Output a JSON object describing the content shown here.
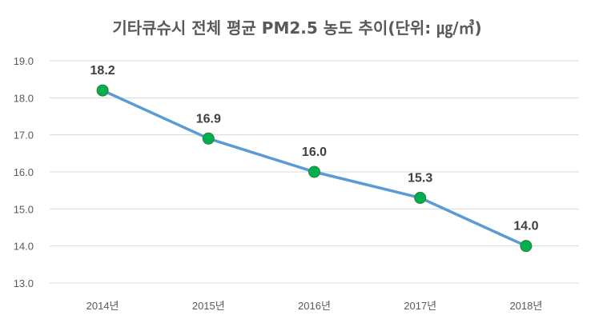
{
  "chart_data": {
    "type": "line",
    "title": "기타큐슈시 전체 평균 PM2.5 농도 추이(단위: ㎍/㎥)",
    "categories": [
      "2014년",
      "2015년",
      "2016년",
      "2017년",
      "2018년"
    ],
    "series": [
      {
        "values": [
          18.2,
          16.9,
          16.0,
          15.3,
          14.0
        ]
      }
    ],
    "data_labels": [
      "18.2",
      "16.9",
      "16.0",
      "15.3",
      "14.0"
    ],
    "ylim": [
      13.0,
      19.0
    ],
    "yticks": [
      "13.0",
      "14.0",
      "15.0",
      "16.0",
      "17.0",
      "18.0",
      "19.0"
    ],
    "xlabel": "",
    "ylabel": "",
    "grid": true,
    "legend": "none",
    "colors": {
      "line": "#5b9bd5",
      "marker": "#00b050",
      "marker_border": "#2e7d32",
      "grid": "#d9d9d9"
    }
  }
}
